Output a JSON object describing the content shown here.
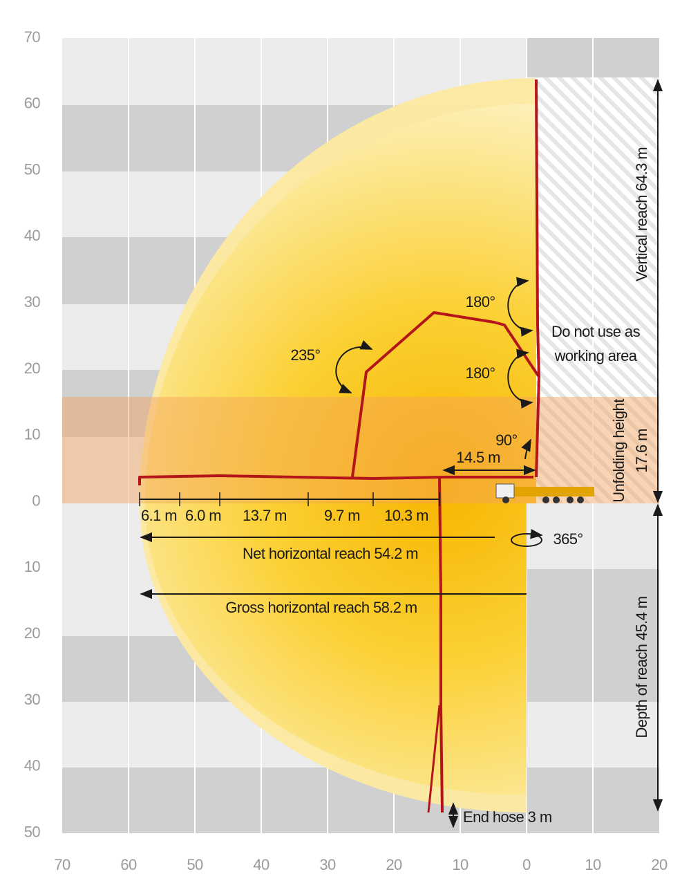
{
  "y_axis_labels": [
    "70",
    "60",
    "50",
    "40",
    "30",
    "20",
    "10",
    "0",
    "10",
    "20",
    "30",
    "40",
    "50"
  ],
  "x_axis_labels": [
    "70",
    "60",
    "50",
    "40",
    "30",
    "20",
    "10",
    "0",
    "10",
    "20"
  ],
  "segments": [
    "6.1 m",
    "6.0 m",
    "13.7 m",
    "9.7 m",
    "10.3 m"
  ],
  "net_reach": "Net horizontal reach 54.2 m",
  "gross_reach": "Gross horizontal reach 58.2 m",
  "offset": "14.5 m",
  "angles": {
    "base": "90°",
    "upper": "180°",
    "middle": "180°",
    "outer": "235°",
    "slew": "365°"
  },
  "warning": [
    "Do not use as",
    "working area"
  ],
  "unfolding": [
    "Unfolding height",
    "17.6 m"
  ],
  "vertical_reach": "Vertical reach 64.3 m",
  "depth_reach": "Depth of reach 45.4 m",
  "end_hose": "End hose 3 m"
}
